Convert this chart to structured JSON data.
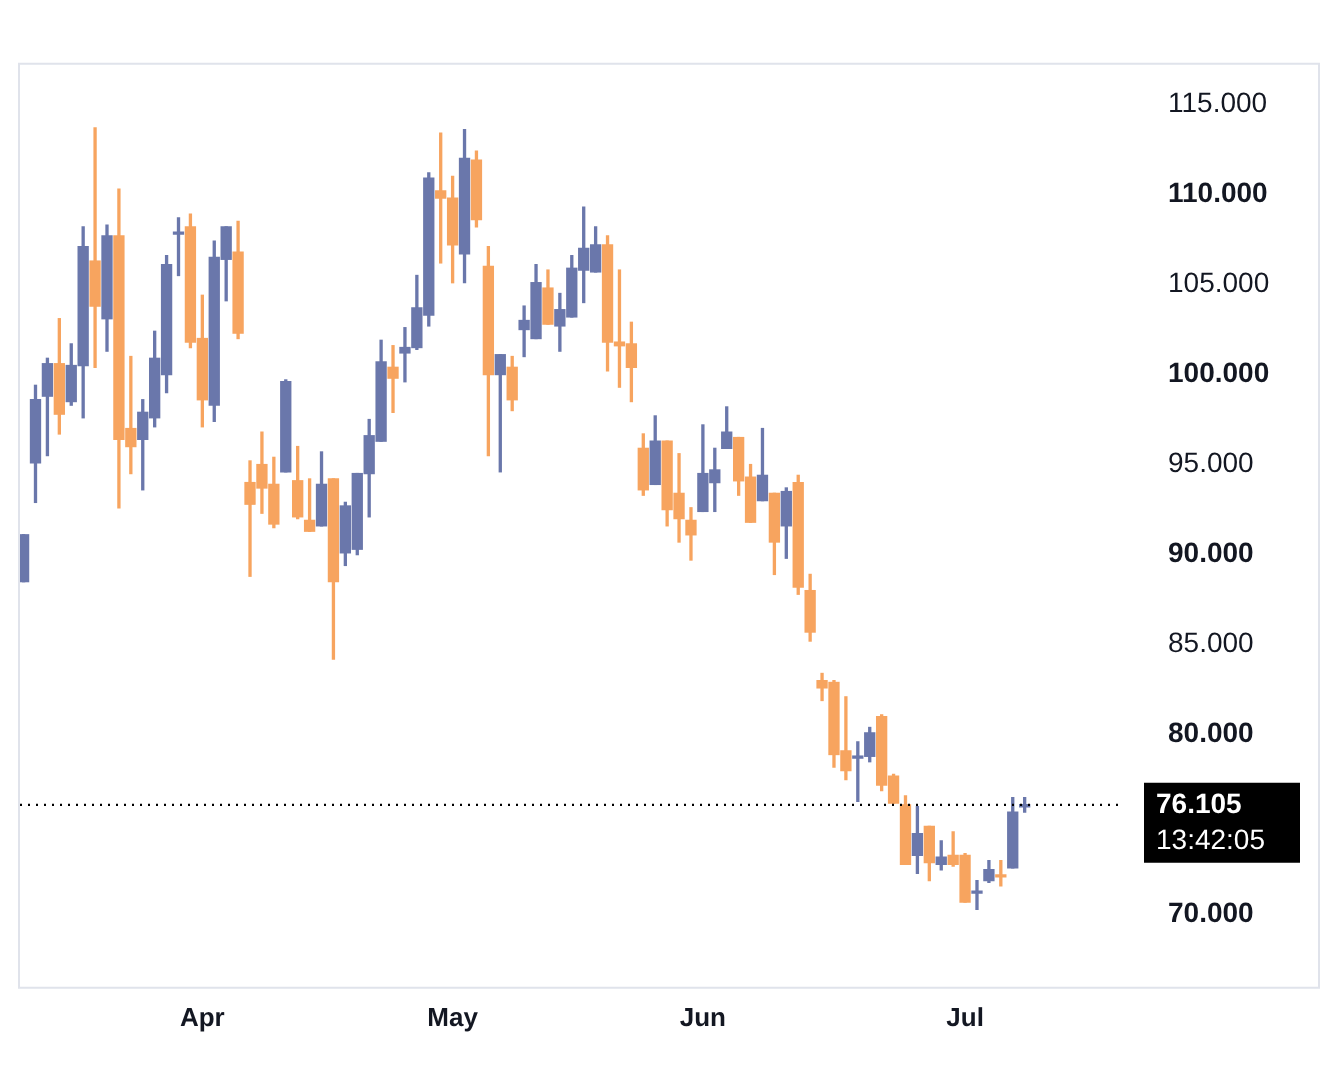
{
  "chart_data": {
    "type": "candlestick",
    "categories": [
      null,
      null,
      null,
      null,
      null,
      null,
      null,
      null,
      null,
      null,
      null,
      null,
      null,
      null,
      null,
      "Apr",
      null,
      null,
      null,
      null,
      null,
      null,
      null,
      null,
      null,
      null,
      null,
      null,
      null,
      null,
      null,
      null,
      null,
      null,
      null,
      null,
      "May",
      null,
      null,
      null,
      null,
      null,
      null,
      null,
      null,
      null,
      null,
      null,
      null,
      null,
      null,
      null,
      null,
      null,
      null,
      null,
      null,
      "Jun",
      null,
      null,
      null,
      null,
      null,
      null,
      null,
      null,
      null,
      null,
      null,
      null,
      null,
      null,
      null,
      null,
      null,
      null,
      null,
      null,
      null,
      "Jul",
      null,
      null,
      null,
      null,
      null
    ],
    "ohlc": [
      [
        88.5,
        91.1,
        88.5,
        91.1
      ],
      [
        95.1,
        99.4,
        92.9,
        98.6
      ],
      [
        98.8,
        100.9,
        95.5,
        100.6
      ],
      [
        100.6,
        103.1,
        96.7,
        97.8
      ],
      [
        98.5,
        101.7,
        98.3,
        100.5
      ],
      [
        100.5,
        108.2,
        97.6,
        107.1
      ],
      [
        106.3,
        113.7,
        100.4,
        103.8
      ],
      [
        103.1,
        108.3,
        101.3,
        107.7
      ],
      [
        107.7,
        110.3,
        92.6,
        96.4
      ],
      [
        97.0,
        101.0,
        94.5,
        96.0
      ],
      [
        96.4,
        98.6,
        93.6,
        97.9
      ],
      [
        97.6,
        102.4,
        97.1,
        100.9
      ],
      [
        100.0,
        106.6,
        99.0,
        106.1
      ],
      [
        107.8,
        108.7,
        105.5,
        107.9
      ],
      [
        108.2,
        108.9,
        101.5,
        101.8
      ],
      [
        102.0,
        104.4,
        97.1,
        98.6
      ],
      [
        98.3,
        107.4,
        97.4,
        106.5
      ],
      [
        106.4,
        108.2,
        104.1,
        108.2
      ],
      [
        106.8,
        108.5,
        102.0,
        102.3
      ],
      [
        94.0,
        95.2,
        88.8,
        92.8
      ],
      [
        95.0,
        96.8,
        92.3,
        93.7
      ],
      [
        93.9,
        95.4,
        91.5,
        91.7
      ],
      [
        94.6,
        99.7,
        94.6,
        99.6
      ],
      [
        94.1,
        96.0,
        92.0,
        92.1
      ],
      [
        91.9,
        94.2,
        91.3,
        91.3
      ],
      [
        91.6,
        95.7,
        91.6,
        93.9
      ],
      [
        94.2,
        94.2,
        84.2,
        88.5
      ],
      [
        90.1,
        92.9,
        89.4,
        92.7
      ],
      [
        90.3,
        94.5,
        90.0,
        94.5
      ],
      [
        94.5,
        97.5,
        92.1,
        96.6
      ],
      [
        96.3,
        101.9,
        96.3,
        100.7
      ],
      [
        100.4,
        101.6,
        97.9,
        99.8
      ],
      [
        101.2,
        102.6,
        99.6,
        101.5
      ],
      [
        101.5,
        105.5,
        101.4,
        103.7
      ],
      [
        103.3,
        111.2,
        102.7,
        110.9
      ],
      [
        110.2,
        113.4,
        106.2,
        109.8
      ],
      [
        109.8,
        111.0,
        105.1,
        107.2
      ],
      [
        106.7,
        113.6,
        105.1,
        112.0
      ],
      [
        111.9,
        112.4,
        108.2,
        108.6
      ],
      [
        106.0,
        107.1,
        95.5,
        100.0
      ],
      [
        100.0,
        101.1,
        94.6,
        101.1
      ],
      [
        100.4,
        101.0,
        98.0,
        98.6
      ],
      [
        102.5,
        103.8,
        101.0,
        103.0
      ],
      [
        102.0,
        106.1,
        102.0,
        105.1
      ],
      [
        104.8,
        105.8,
        102.8,
        102.8
      ],
      [
        102.7,
        104.5,
        101.3,
        103.6
      ],
      [
        103.2,
        106.6,
        103.2,
        105.9
      ],
      [
        105.8,
        109.3,
        104.0,
        107.0
      ],
      [
        105.7,
        108.2,
        105.7,
        107.2
      ],
      [
        107.2,
        107.7,
        100.2,
        101.8
      ],
      [
        101.8,
        105.8,
        99.3,
        101.6
      ],
      [
        101.7,
        102.9,
        98.5,
        100.4
      ],
      [
        95.9,
        96.7,
        93.3,
        93.6
      ],
      [
        93.9,
        97.7,
        93.9,
        96.3
      ],
      [
        96.3,
        96.3,
        91.6,
        92.5
      ],
      [
        93.4,
        95.6,
        90.7,
        92.0
      ],
      [
        91.9,
        92.6,
        89.7,
        91.1
      ],
      [
        92.4,
        97.2,
        92.4,
        94.5
      ],
      [
        94.0,
        95.9,
        92.4,
        94.7
      ],
      [
        95.9,
        98.2,
        95.9,
        96.8
      ],
      [
        96.5,
        96.5,
        93.3,
        94.1
      ],
      [
        94.3,
        95.0,
        91.8,
        91.8
      ],
      [
        93.0,
        97.0,
        93.0,
        94.4
      ],
      [
        93.4,
        93.4,
        88.9,
        90.7
      ],
      [
        91.6,
        93.7,
        89.8,
        93.5
      ],
      [
        94.0,
        94.4,
        87.8,
        88.2
      ],
      [
        88.0,
        88.9,
        85.2,
        85.7
      ],
      [
        83.0,
        83.4,
        81.9,
        82.6
      ],
      [
        82.9,
        83.0,
        78.2,
        78.9
      ],
      [
        79.1,
        82.1,
        77.5,
        78.0
      ],
      [
        78.7,
        79.6,
        76.3,
        78.8
      ],
      [
        78.8,
        80.4,
        78.5,
        80.1
      ],
      [
        81.0,
        81.1,
        76.9,
        77.2
      ],
      [
        77.7,
        77.8,
        76.2,
        76.2
      ],
      [
        76.1,
        76.6,
        72.8,
        72.8
      ],
      [
        73.3,
        76.0,
        72.3,
        74.5
      ],
      [
        74.9,
        74.9,
        71.9,
        72.9
      ],
      [
        72.8,
        74.1,
        72.5,
        73.2
      ],
      [
        73.3,
        74.6,
        72.7,
        72.8
      ],
      [
        73.3,
        73.4,
        70.7,
        70.7
      ],
      [
        71.2,
        71.9,
        70.3,
        71.2
      ],
      [
        71.9,
        73.0,
        71.8,
        72.5
      ],
      [
        72.2,
        73.0,
        71.6,
        72.1
      ],
      [
        72.6,
        76.5,
        72.6,
        75.7
      ],
      [
        76.0,
        76.5,
        75.7,
        76.105
      ]
    ],
    "colors": [
      "#6a77ab",
      "#6a77ab",
      "#6a77ab",
      "#f7a45f",
      "#6a77ab",
      "#6a77ab",
      "#f7a45f",
      "#6a77ab",
      "#f7a45f",
      "#f7a45f",
      "#6a77ab",
      "#6a77ab",
      "#6a77ab",
      "#6a77ab",
      "#f7a45f",
      "#f7a45f",
      "#6a77ab",
      "#6a77ab",
      "#f7a45f",
      "#f7a45f",
      "#f7a45f",
      "#f7a45f",
      "#6a77ab",
      "#f7a45f",
      "#f7a45f",
      "#6a77ab",
      "#f7a45f",
      "#6a77ab",
      "#6a77ab",
      "#6a77ab",
      "#6a77ab",
      "#f7a45f",
      "#6a77ab",
      "#6a77ab",
      "#6a77ab",
      "#f7a45f",
      "#f7a45f",
      "#6a77ab",
      "#f7a45f",
      "#f7a45f",
      "#6a77ab",
      "#f7a45f",
      "#6a77ab",
      "#6a77ab",
      "#f7a45f",
      "#6a77ab",
      "#6a77ab",
      "#6a77ab",
      "#6a77ab",
      "#f7a45f",
      "#f7a45f",
      "#f7a45f",
      "#f7a45f",
      "#6a77ab",
      "#f7a45f",
      "#f7a45f",
      "#f7a45f",
      "#6a77ab",
      "#6a77ab",
      "#6a77ab",
      "#f7a45f",
      "#f7a45f",
      "#6a77ab",
      "#f7a45f",
      "#6a77ab",
      "#f7a45f",
      "#f7a45f",
      "#f7a45f",
      "#f7a45f",
      "#f7a45f",
      "#6a77ab",
      "#6a77ab",
      "#f7a45f",
      "#f7a45f",
      "#f7a45f",
      "#6a77ab",
      "#f7a45f",
      "#6a77ab",
      "#f7a45f",
      "#f7a45f",
      "#6a77ab",
      "#6a77ab",
      "#f7a45f",
      "#6a77ab",
      "#6a77ab"
    ],
    "ylim": [
      66,
      117.2
    ],
    "yticks": [
      {
        "value": 70,
        "label": "70.000"
      },
      {
        "value": 80,
        "label": "80.000"
      },
      {
        "value": 85,
        "label": "85.000"
      },
      {
        "value": 90,
        "label": "90.000"
      },
      {
        "value": 95,
        "label": "95.000"
      },
      {
        "value": 100,
        "label": "100.000"
      },
      {
        "value": 105,
        "label": "105.000"
      },
      {
        "value": 110,
        "label": "110.000"
      },
      {
        "value": 115,
        "label": "115.000"
      }
    ],
    "ref_lines": [
      {
        "axis": "y",
        "value": 76.105,
        "label": "76.105",
        "color": "#000000",
        "line_style": "dotted"
      }
    ],
    "annotations": [
      "13:42:05"
    ],
    "grid": false,
    "legend": false
  }
}
